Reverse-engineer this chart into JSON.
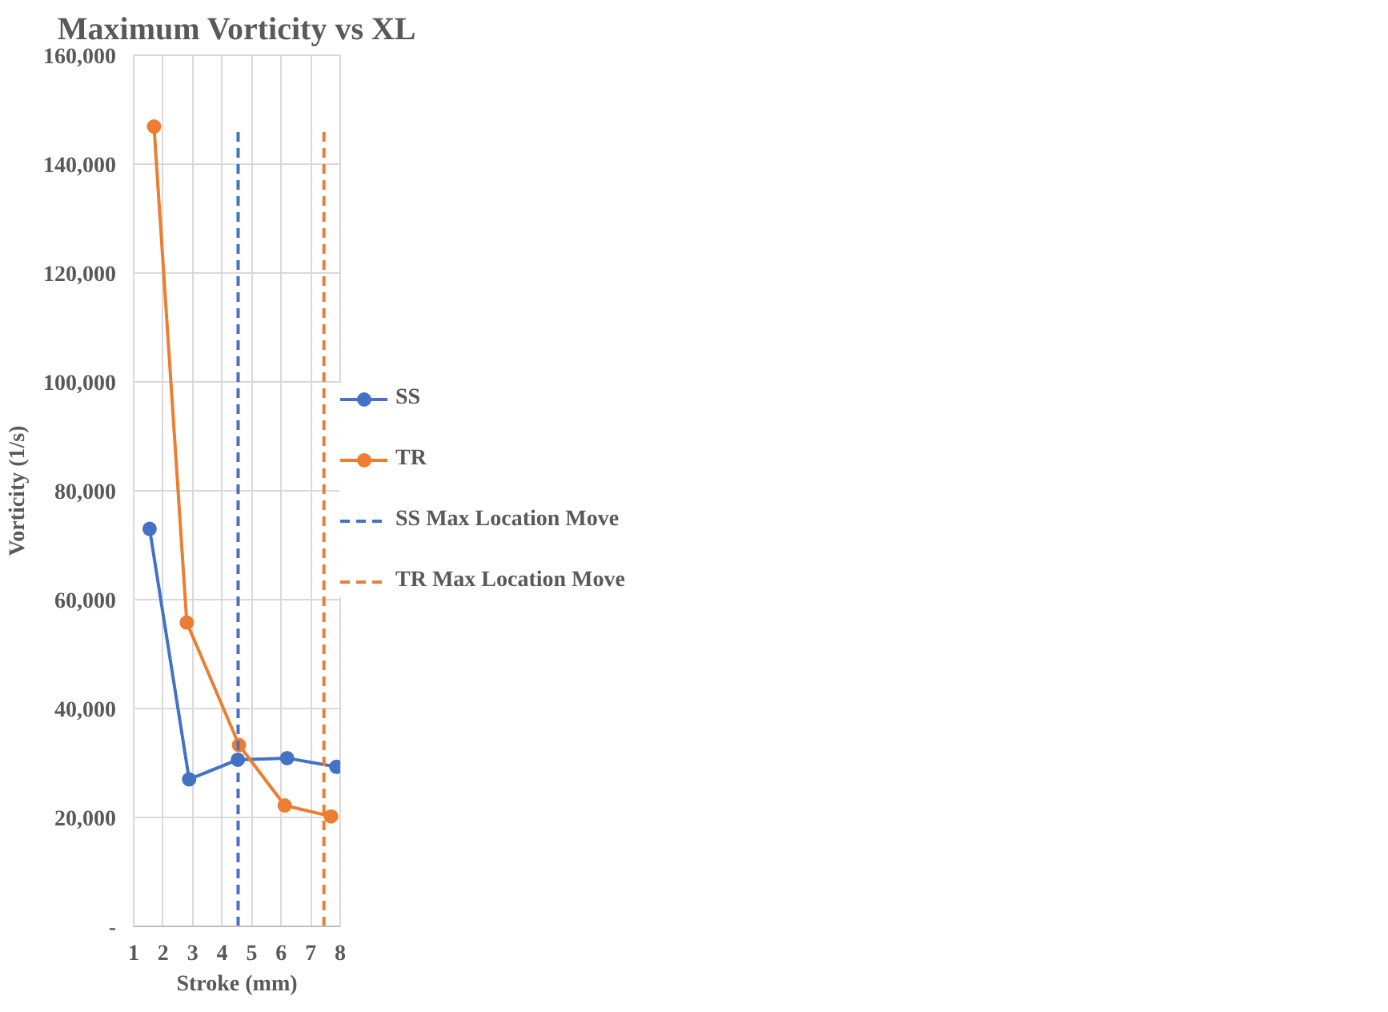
{
  "chart_data": {
    "type": "line",
    "title": "Maximum Vorticity vs XL",
    "xlabel": "Stroke (mm)",
    "ylabel": "Vorticity (1/s)",
    "xlim": [
      1,
      8
    ],
    "xticks": [
      1,
      2,
      3,
      4,
      5,
      6,
      7,
      8
    ],
    "ylim": [
      0,
      160000
    ],
    "yticks": [
      {
        "value": 0,
        "label": "-"
      },
      {
        "value": 20000,
        "label": "20,000"
      },
      {
        "value": 40000,
        "label": "40,000"
      },
      {
        "value": 60000,
        "label": "60,000"
      },
      {
        "value": 80000,
        "label": "80,000"
      },
      {
        "value": 100000,
        "label": "100,000"
      },
      {
        "value": 120000,
        "label": "120,000"
      },
      {
        "value": 140000,
        "label": "140,000"
      },
      {
        "value": 160000,
        "label": "160,000"
      }
    ],
    "grid": true,
    "legend": "right",
    "marker": "circle",
    "line_style": "solid",
    "series": [
      {
        "name": "SS",
        "color": "#4472c4",
        "x": [
          1.54,
          2.88,
          4.53,
          6.2,
          7.87
        ],
        "values": [
          73000,
          27000,
          30600,
          30900,
          29300
        ]
      },
      {
        "name": "TR",
        "color": "#ed7d31",
        "x": [
          1.69,
          2.8,
          4.57,
          6.12,
          7.69
        ],
        "values": [
          146900,
          55800,
          33300,
          22200,
          20200
        ]
      },
      {
        "name": "SS Max Location Move",
        "color": "#4472c4",
        "marker": "none",
        "line_style": "dashed",
        "x": [
          4.54,
          4.54
        ],
        "values": [
          0,
          147000
        ]
      },
      {
        "name": "TR Max Location Move",
        "color": "#ed7d31",
        "marker": "none",
        "line_style": "dashed",
        "x": [
          7.45,
          7.45
        ],
        "values": [
          0,
          147000
        ]
      }
    ]
  }
}
